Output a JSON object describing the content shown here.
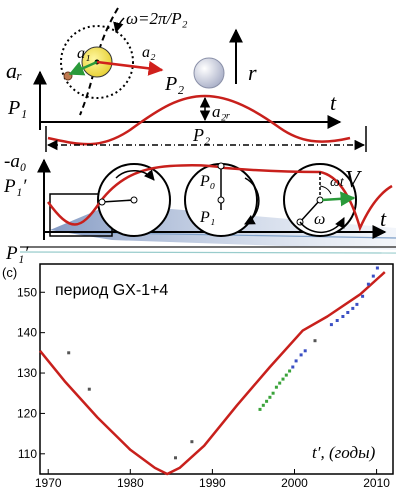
{
  "diagram": {
    "omega_formula": "ω=2π/P₂",
    "a1": "a₁",
    "a2": "a₂",
    "P2_star": "P₂",
    "ar_axis": "aᵣ",
    "r_axis": "r",
    "P1_top": "P₁",
    "t_top": "t",
    "a2r": "a₂ᵣ",
    "P2_period": "P₂",
    "minus_a0": "-a₀",
    "P1prime_a": "P₁′",
    "P1prime_b": "P₁′",
    "V": "V",
    "omega_t": "ωt",
    "omega": "ω",
    "P0_wheel": "P₀",
    "P1_wheel": "P₁",
    "t_mid": "t"
  },
  "plot": {
    "panel_label": "(c)",
    "title": "период GX-1+4",
    "xlabel": "t′, (годы)",
    "x_ticks": [
      "1970",
      "1980",
      "1990",
      "2000",
      "2010"
    ],
    "y_ticks": [
      "110",
      "120",
      "130",
      "140",
      "150"
    ]
  },
  "chart_data": {
    "type": "line",
    "title": "период GX-1+4",
    "xlabel": "t′, (годы)",
    "ylabel": "",
    "xlim": [
      1969,
      2012
    ],
    "ylim": [
      105,
      157
    ],
    "series": [
      {
        "color": "#c8201c",
        "x": [
          1969,
          1972,
          1976,
          1980,
          1983,
          1984.5,
          1986,
          1989,
          1993,
          1997,
          2001,
          2004,
          2008,
          2011
        ],
        "y": [
          135.5,
          128,
          119,
          111,
          106.5,
          105,
          106.5,
          112,
          122,
          131.5,
          140.5,
          144,
          149.5,
          155
        ]
      }
    ],
    "points": [
      {
        "color": "#3aa33a",
        "x": [
          1995.8,
          1996.2,
          1996.6,
          1997,
          1997.4,
          1997.8,
          1998.2,
          1998.6,
          1999.0,
          1999.4
        ],
        "y": [
          121,
          122,
          123,
          124,
          125,
          126.5,
          127.5,
          128.5,
          129.5,
          130.5
        ]
      },
      {
        "color": "#3b4fc4",
        "x": [
          1999.8,
          2000.2,
          2000.8,
          2001.3,
          2004.5,
          2005.2,
          2005.9,
          2006.5,
          2007.1,
          2007.6,
          2008.3,
          2009.0,
          2009.6,
          2010.1
        ],
        "y": [
          131.5,
          133,
          134.5,
          135.5,
          142,
          143,
          144,
          145,
          146,
          147,
          149,
          152,
          154,
          156
        ]
      },
      {
        "color": "#555555",
        "x": [
          1972.5,
          1975,
          1985.5,
          1987.5,
          2002.5
        ],
        "y": [
          135,
          126,
          109,
          113,
          138
        ]
      }
    ]
  }
}
